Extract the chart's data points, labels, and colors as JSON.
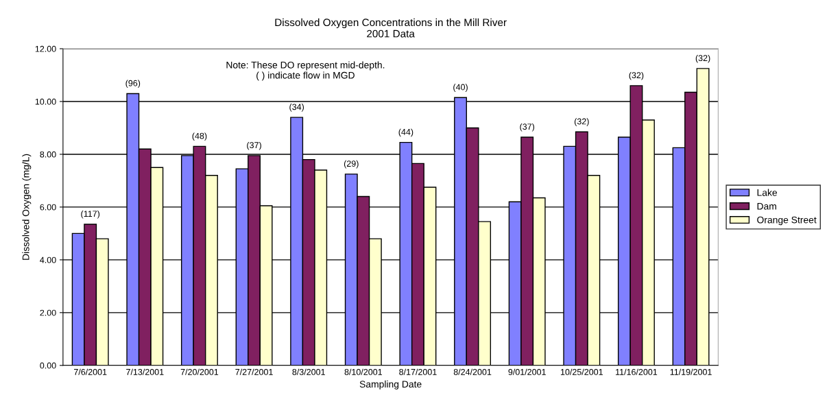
{
  "chart_data": {
    "type": "bar",
    "title": "Dissolved Oxygen Concentrations in the Mill River\n2001 Data",
    "xlabel": "Sampling Date",
    "ylabel": "Dissolved Oxygen (mg/L)",
    "categories": [
      "7/6/2001",
      "7/13/2001",
      "7/20/2001",
      "7/27/2001",
      "8/3/2001",
      "8/10/2001",
      "8/17/2001",
      "8/24/2001",
      "9/01/2001",
      "10/25/2001",
      "11/16/2001",
      "11/19/2001"
    ],
    "series": [
      {
        "name": "Lake",
        "color": "#8080ff",
        "values": [
          5.0,
          10.3,
          7.95,
          7.45,
          9.4,
          7.25,
          8.45,
          10.15,
          6.2,
          8.3,
          8.65,
          8.25
        ]
      },
      {
        "name": "Dam",
        "color": "#802060",
        "values": [
          5.35,
          8.2,
          8.3,
          7.95,
          7.8,
          6.4,
          7.65,
          9.0,
          8.65,
          8.85,
          10.6,
          10.35
        ]
      },
      {
        "name": "Orange Street",
        "color": "#ffffcc",
        "values": [
          4.8,
          7.5,
          7.2,
          6.05,
          7.4,
          4.8,
          6.75,
          5.45,
          6.35,
          7.2,
          9.3,
          11.25
        ]
      }
    ],
    "ylim": [
      0,
      12
    ],
    "yticks": [
      {
        "value": 0,
        "label": "0.00"
      },
      {
        "value": 2,
        "label": "2.00"
      },
      {
        "value": 4,
        "label": "4.00"
      },
      {
        "value": 6,
        "label": "6.00"
      },
      {
        "value": 8,
        "label": "8.00"
      },
      {
        "value": 10,
        "label": "10.00"
      },
      {
        "value": 12,
        "label": "12.00"
      }
    ],
    "grid": "y",
    "legend": "right",
    "annotations": [
      "Note: These DO represent mid-depth.\n( ) indicate flow in MGD",
      "(117)",
      "(96)",
      "(48)",
      "(37)",
      "(34)",
      "(29)",
      "(44)",
      "(40)",
      "(37)",
      "(32)",
      "(32)",
      "(32)"
    ]
  }
}
